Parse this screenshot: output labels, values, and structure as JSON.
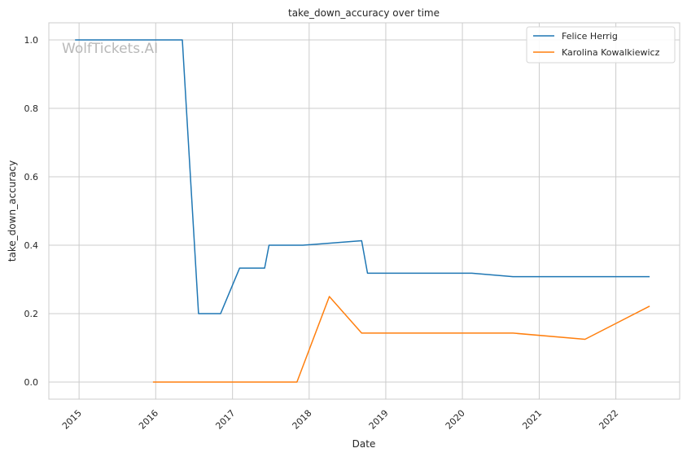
{
  "chart_data": {
    "type": "line",
    "title": "take_down_accuracy over time",
    "xlabel": "Date",
    "ylabel": "take_down_accuracy",
    "watermark": "WolfTickets.AI",
    "xlim": [
      "2014-08-10",
      "2022-11-01"
    ],
    "ylim": [
      -0.05,
      1.05
    ],
    "x_ticks": [
      "2015-01-01",
      "2016-01-01",
      "2017-01-01",
      "2018-01-01",
      "2019-01-01",
      "2020-01-01",
      "2021-01-01",
      "2022-01-01"
    ],
    "x_tick_labels": [
      "2015",
      "2016",
      "2017",
      "2018",
      "2019",
      "2020",
      "2021",
      "2022"
    ],
    "y_ticks": [
      0.0,
      0.2,
      0.4,
      0.6,
      0.8,
      1.0
    ],
    "y_tick_labels": [
      "0.0",
      "0.2",
      "0.4",
      "0.6",
      "0.8",
      "1.0"
    ],
    "grid": true,
    "legend_position": "top-right",
    "series": [
      {
        "name": "Felice Herrig",
        "color": "#1f77b4",
        "points": [
          {
            "x": "2014-12-13",
            "y": 1.0
          },
          {
            "x": "2016-05-07",
            "y": 1.0
          },
          {
            "x": "2016-07-23",
            "y": 0.2
          },
          {
            "x": "2016-11-05",
            "y": 0.2
          },
          {
            "x": "2017-02-04",
            "y": 0.333
          },
          {
            "x": "2017-06-03",
            "y": 0.333
          },
          {
            "x": "2017-06-24",
            "y": 0.4
          },
          {
            "x": "2017-12-02",
            "y": 0.4
          },
          {
            "x": "2018-09-08",
            "y": 0.413
          },
          {
            "x": "2018-10-06",
            "y": 0.318
          },
          {
            "x": "2020-02-15",
            "y": 0.318
          },
          {
            "x": "2020-08-29",
            "y": 0.308
          },
          {
            "x": "2022-06-11",
            "y": 0.308
          }
        ]
      },
      {
        "name": "Karolina Kowalkiewicz",
        "color": "#ff7f0e",
        "points": [
          {
            "x": "2015-12-19",
            "y": 0.0
          },
          {
            "x": "2017-11-04",
            "y": 0.0
          },
          {
            "x": "2018-04-07",
            "y": 0.25
          },
          {
            "x": "2018-09-08",
            "y": 0.143
          },
          {
            "x": "2020-08-29",
            "y": 0.143
          },
          {
            "x": "2021-08-07",
            "y": 0.125
          },
          {
            "x": "2022-06-11",
            "y": 0.222
          }
        ]
      }
    ]
  }
}
